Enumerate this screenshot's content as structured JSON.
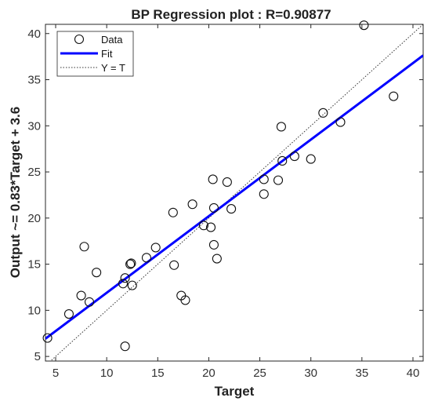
{
  "chart_data": {
    "type": "scatter",
    "title": "BP Regression plot : R=0.90877",
    "xlabel": "Target",
    "ylabel": "Output ~= 0.83*Target + 3.6",
    "xlim": [
      4,
      41
    ],
    "ylim": [
      4.5,
      41
    ],
    "xticks": [
      "5",
      "10",
      "15",
      "20",
      "25",
      "30",
      "35",
      "40"
    ],
    "yticks": [
      "5",
      "10",
      "15",
      "20",
      "25",
      "30",
      "35",
      "40"
    ],
    "grid": false,
    "legend_position": "top-left",
    "legend": [
      "Data",
      "Fit",
      "Y = T"
    ],
    "fit": {
      "slope": 0.83,
      "intercept": 3.6,
      "color": "#0000ff"
    },
    "identity_line_color": "#333333",
    "marker_color": "#111111",
    "series": [
      {
        "name": "Data",
        "points": [
          [
            4.2,
            7.0
          ],
          [
            6.3,
            9.6
          ],
          [
            7.5,
            11.6
          ],
          [
            7.8,
            16.9
          ],
          [
            8.3,
            10.9
          ],
          [
            9.0,
            14.1
          ],
          [
            11.6,
            12.9
          ],
          [
            11.8,
            13.5
          ],
          [
            11.8,
            6.1
          ],
          [
            12.3,
            15.0
          ],
          [
            12.4,
            15.1
          ],
          [
            12.5,
            12.7
          ],
          [
            13.9,
            15.7
          ],
          [
            14.8,
            16.8
          ],
          [
            16.5,
            20.6
          ],
          [
            16.6,
            14.9
          ],
          [
            17.3,
            11.6
          ],
          [
            17.7,
            11.1
          ],
          [
            18.4,
            21.5
          ],
          [
            19.5,
            19.2
          ],
          [
            20.2,
            19.0
          ],
          [
            20.4,
            24.2
          ],
          [
            20.5,
            21.1
          ],
          [
            20.5,
            17.1
          ],
          [
            20.8,
            15.6
          ],
          [
            21.8,
            23.9
          ],
          [
            22.2,
            21.0
          ],
          [
            25.4,
            24.2
          ],
          [
            25.4,
            22.6
          ],
          [
            26.8,
            24.1
          ],
          [
            27.1,
            29.9
          ],
          [
            27.2,
            26.2
          ],
          [
            28.4,
            26.7
          ],
          [
            30.0,
            26.4
          ],
          [
            31.2,
            31.4
          ],
          [
            32.9,
            30.4
          ],
          [
            35.2,
            40.9
          ],
          [
            38.1,
            33.2
          ]
        ]
      }
    ]
  }
}
